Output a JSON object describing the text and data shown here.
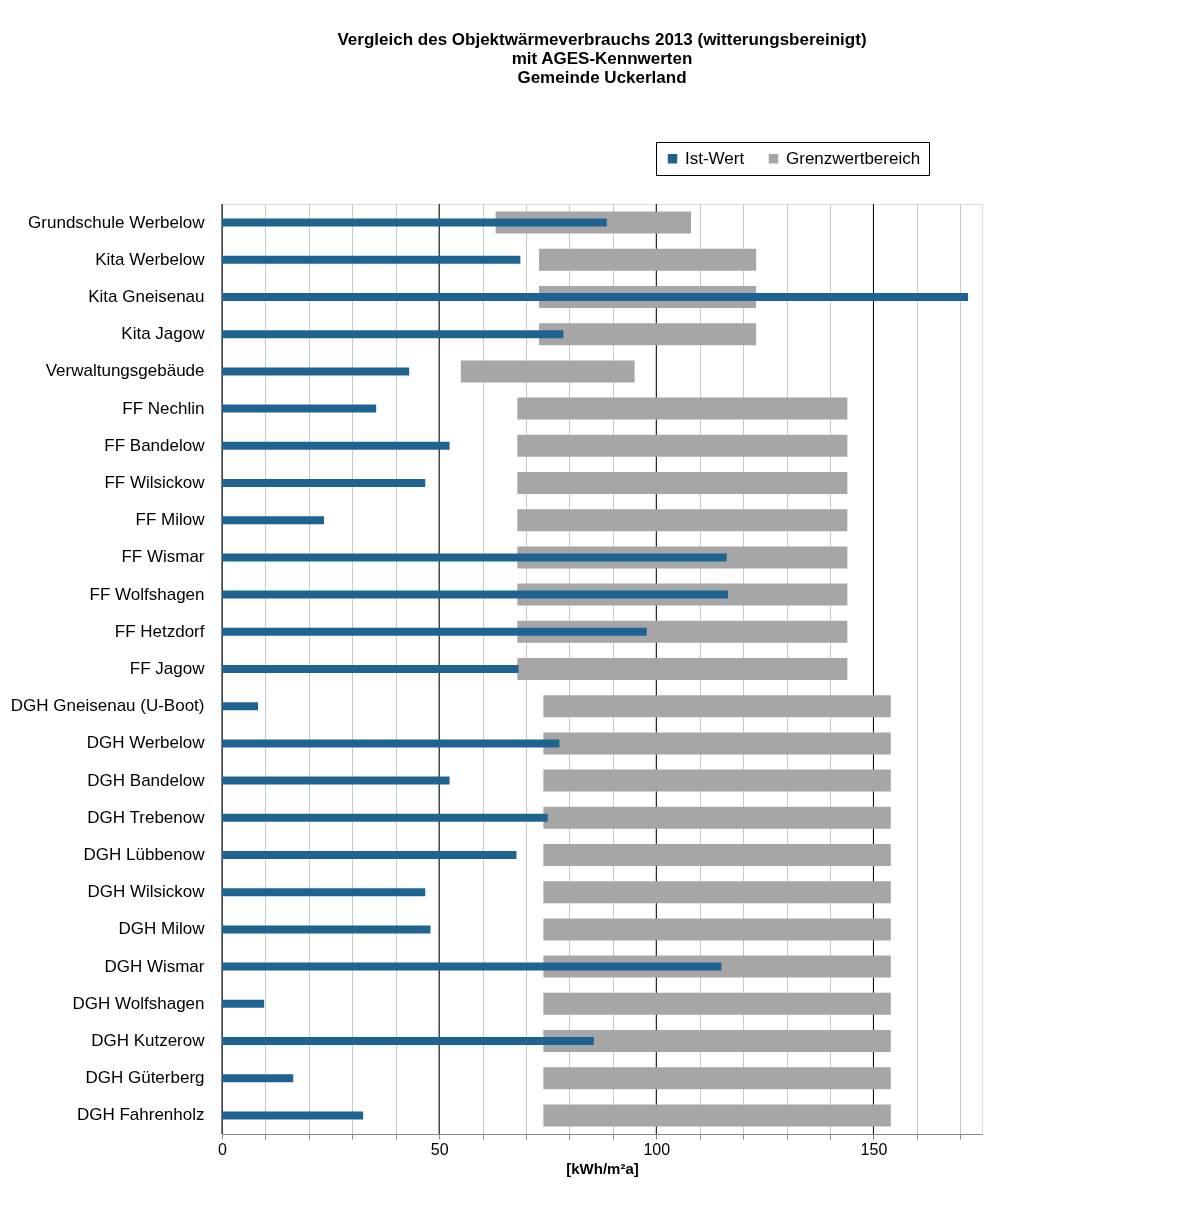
{
  "chart_data": {
    "type": "bar",
    "orientation": "horizontal",
    "title": [
      "Vergleich  des Objektwärmeverbrauchs 2013 (witterungsbereinigt)",
      "mit AGES-Kennwerten",
      "Gemeinde  Uckerland"
    ],
    "xlabel": "[kWh/m²a]",
    "categories": [
      "Grundschule Werbelow",
      "Kita Werbelow",
      "Kita Gneisenau",
      "Kita Jagow",
      "Verwaltungsgebäude",
      "FF Nechlin",
      "FF Bandelow",
      "FF Wilsickow",
      "FF Milow",
      "FF Wismar",
      "FF Wolfshagen",
      "FF Hetzdorf",
      "FF Jagow",
      "DGH Gneisenau (U-Boot)",
      "DGH Werbelow",
      "DGH Bandelow",
      "DGH Trebenow",
      "DGH Lübbenow",
      "DGH Wilsickow",
      "DGH Milow",
      "DGH Wismar",
      "DGH Wolfshagen",
      "DGH Kutzerow",
      "DGH Güterberg",
      "DGH Fahrenholz"
    ],
    "series": [
      {
        "name": "Grenzwertbereich",
        "color": "#a6a6a6",
        "base": [
          63,
          73,
          73,
          73,
          55,
          68,
          68,
          68,
          68,
          68,
          68,
          68,
          68,
          74,
          74,
          74,
          74,
          74,
          74,
          74,
          74,
          74,
          74,
          74,
          74
        ],
        "values": [
          45,
          50,
          50,
          50,
          40,
          76,
          76,
          76,
          76,
          76,
          76,
          76,
          76,
          80,
          80,
          80,
          80,
          80,
          80,
          80,
          80,
          80,
          80,
          80,
          80
        ]
      },
      {
        "name": "Ist-Wert",
        "color": "#1f6391",
        "values": [
          88.6,
          68.7,
          171.8,
          78.6,
          43.1,
          35.5,
          52.4,
          46.8,
          23.5,
          116.2,
          116.5,
          97.8,
          68.3,
          8.3,
          77.7,
          52.4,
          75,
          67.8,
          46.8,
          48,
          115,
          9.7,
          85.6,
          16.4,
          32.5
        ]
      }
    ],
    "xlim": [
      0,
      175
    ],
    "xticks": [
      0,
      {
        "value": 10,
        "label": null
      },
      {
        "value": 20,
        "label": null
      },
      {
        "value": 30,
        "label": null
      },
      {
        "value": 40,
        "label": null
      },
      50,
      {
        "value": 60,
        "label": null
      },
      {
        "value": 70,
        "label": null
      },
      {
        "value": 80,
        "label": null
      },
      {
        "value": 90,
        "label": null
      },
      100,
      {
        "value": 110,
        "label": null
      },
      {
        "value": 120,
        "label": null
      },
      {
        "value": 130,
        "label": null
      },
      {
        "value": 140,
        "label": null
      },
      150,
      {
        "value": 160,
        "label": null
      },
      {
        "value": 170,
        "label": null
      }
    ],
    "grid": "x",
    "legend": "top right"
  }
}
